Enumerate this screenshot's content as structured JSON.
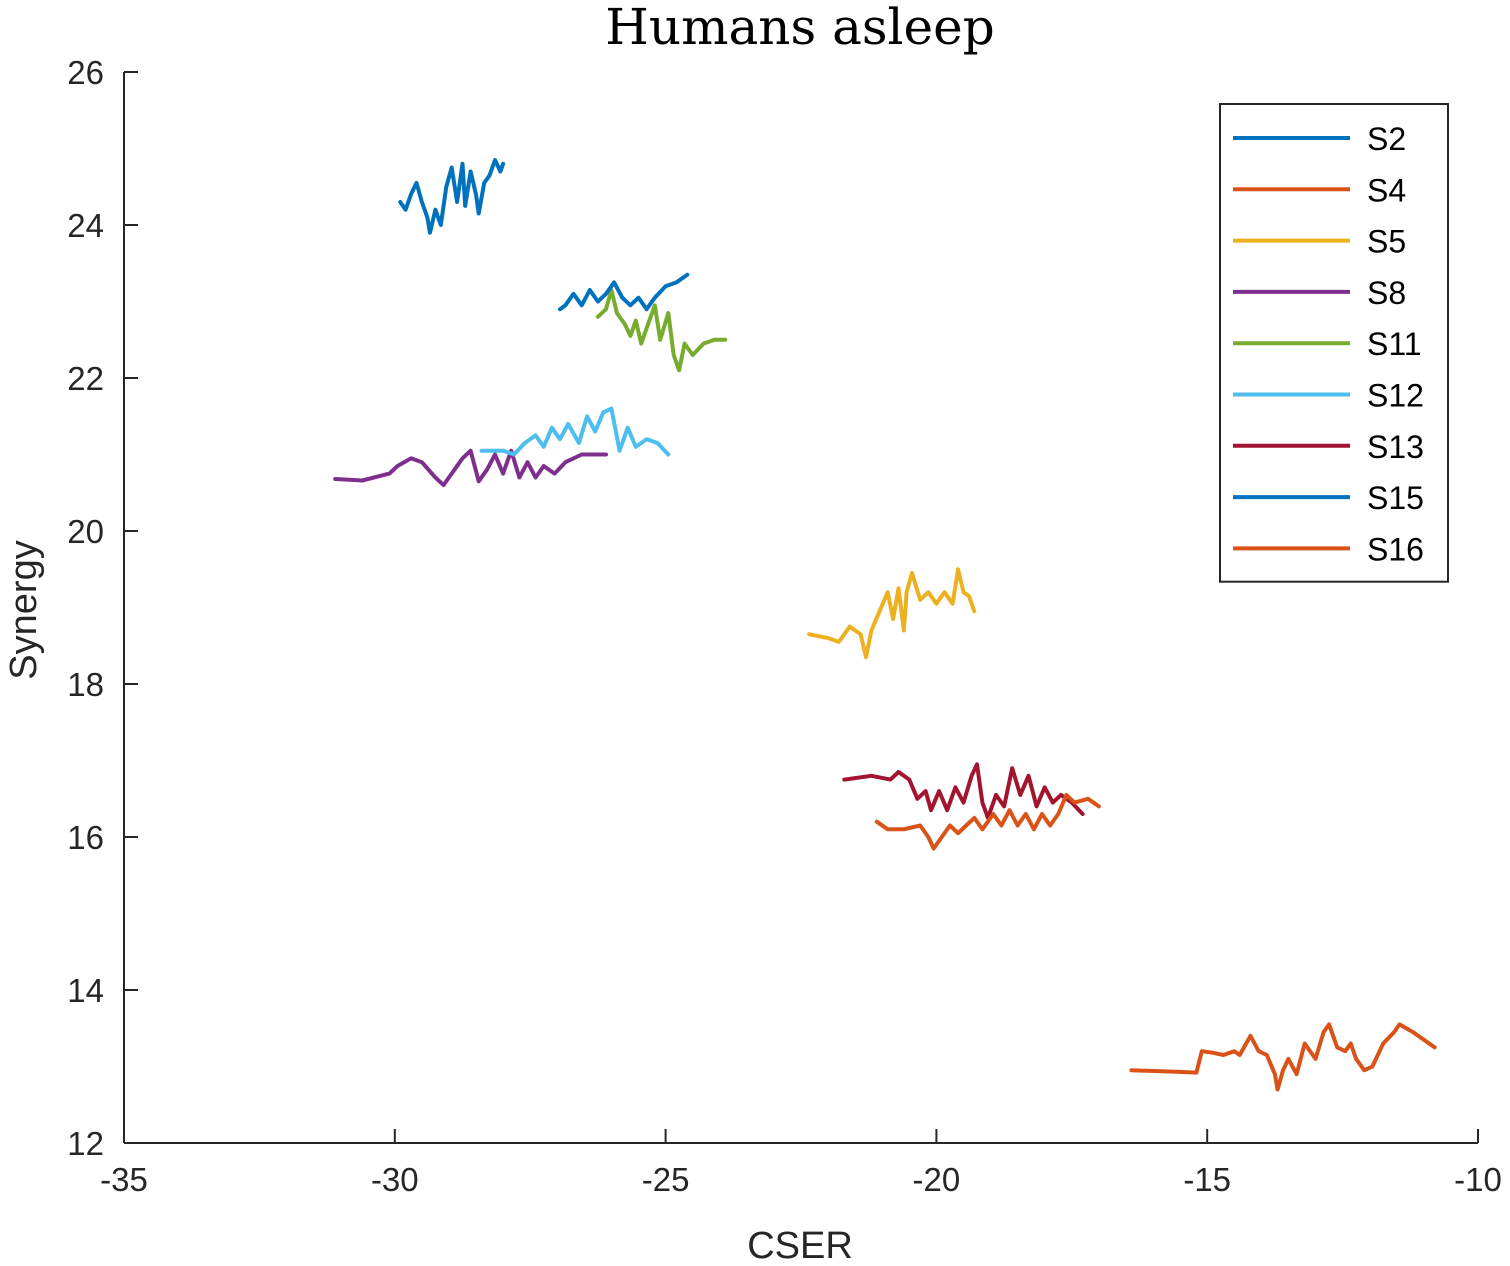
{
  "chart_data": {
    "type": "line",
    "title": "Humans asleep",
    "xlabel": "CSER",
    "ylabel": "Synergy",
    "xlim": [
      -35,
      -10
    ],
    "ylim": [
      12,
      26
    ],
    "xticks": [
      -35,
      -30,
      -25,
      -20,
      -15,
      -10
    ],
    "yticks": [
      12,
      14,
      16,
      18,
      20,
      22,
      24,
      26
    ],
    "grid": false,
    "legend_position": "top-right",
    "series": [
      {
        "name": "S2",
        "color": "#0072BD",
        "points": [
          [
            -29.9,
            24.3
          ],
          [
            -29.8,
            24.2
          ],
          [
            -29.7,
            24.4
          ],
          [
            -29.6,
            24.55
          ],
          [
            -29.5,
            24.3
          ],
          [
            -29.4,
            24.1
          ],
          [
            -29.35,
            23.9
          ],
          [
            -29.25,
            24.2
          ],
          [
            -29.15,
            24.0
          ],
          [
            -29.05,
            24.5
          ],
          [
            -28.95,
            24.75
          ],
          [
            -28.85,
            24.3
          ],
          [
            -28.75,
            24.8
          ],
          [
            -28.7,
            24.25
          ],
          [
            -28.6,
            24.7
          ],
          [
            -28.5,
            24.4
          ],
          [
            -28.45,
            24.15
          ],
          [
            -28.35,
            24.55
          ],
          [
            -28.25,
            24.65
          ],
          [
            -28.15,
            24.85
          ],
          [
            -28.05,
            24.7
          ],
          [
            -28.0,
            24.8
          ]
        ]
      },
      {
        "name": "S4",
        "color": "#D95319",
        "points": [
          [
            -16.4,
            12.95
          ],
          [
            -15.5,
            12.93
          ],
          [
            -15.2,
            12.92
          ],
          [
            -15.1,
            13.2
          ],
          [
            -14.9,
            13.18
          ],
          [
            -14.7,
            13.15
          ],
          [
            -14.5,
            13.2
          ],
          [
            -14.4,
            13.15
          ],
          [
            -14.2,
            13.4
          ],
          [
            -14.05,
            13.2
          ],
          [
            -13.9,
            13.15
          ],
          [
            -13.75,
            12.9
          ],
          [
            -13.7,
            12.7
          ],
          [
            -13.6,
            12.95
          ],
          [
            -13.5,
            13.1
          ],
          [
            -13.35,
            12.9
          ],
          [
            -13.2,
            13.3
          ],
          [
            -13.0,
            13.1
          ],
          [
            -12.85,
            13.45
          ],
          [
            -12.75,
            13.55
          ],
          [
            -12.6,
            13.25
          ],
          [
            -12.45,
            13.2
          ],
          [
            -12.35,
            13.3
          ],
          [
            -12.25,
            13.1
          ],
          [
            -12.1,
            12.95
          ],
          [
            -11.95,
            13.0
          ],
          [
            -11.75,
            13.3
          ],
          [
            -11.55,
            13.45
          ],
          [
            -11.45,
            13.55
          ],
          [
            -11.2,
            13.45
          ],
          [
            -11.0,
            13.35
          ],
          [
            -10.8,
            13.25
          ]
        ]
      },
      {
        "name": "S5",
        "color": "#EDB120",
        "points": [
          [
            -22.35,
            18.65
          ],
          [
            -22.0,
            18.6
          ],
          [
            -21.8,
            18.55
          ],
          [
            -21.6,
            18.75
          ],
          [
            -21.4,
            18.65
          ],
          [
            -21.3,
            18.35
          ],
          [
            -21.2,
            18.7
          ],
          [
            -21.05,
            18.95
          ],
          [
            -20.9,
            19.2
          ],
          [
            -20.8,
            18.85
          ],
          [
            -20.7,
            19.25
          ],
          [
            -20.6,
            18.7
          ],
          [
            -20.55,
            19.2
          ],
          [
            -20.45,
            19.45
          ],
          [
            -20.3,
            19.1
          ],
          [
            -20.15,
            19.2
          ],
          [
            -20.0,
            19.05
          ],
          [
            -19.85,
            19.2
          ],
          [
            -19.7,
            19.05
          ],
          [
            -19.6,
            19.5
          ],
          [
            -19.5,
            19.2
          ],
          [
            -19.4,
            19.15
          ],
          [
            -19.3,
            18.95
          ]
        ]
      },
      {
        "name": "S8",
        "color": "#7E2F8E",
        "points": [
          [
            -31.1,
            20.68
          ],
          [
            -30.6,
            20.66
          ],
          [
            -30.1,
            20.75
          ],
          [
            -29.95,
            20.85
          ],
          [
            -29.7,
            20.95
          ],
          [
            -29.5,
            20.9
          ],
          [
            -29.25,
            20.7
          ],
          [
            -29.1,
            20.6
          ],
          [
            -28.9,
            20.8
          ],
          [
            -28.75,
            20.95
          ],
          [
            -28.6,
            21.05
          ],
          [
            -28.45,
            20.65
          ],
          [
            -28.3,
            20.8
          ],
          [
            -28.15,
            21.0
          ],
          [
            -28.0,
            20.75
          ],
          [
            -27.85,
            21.05
          ],
          [
            -27.7,
            20.7
          ],
          [
            -27.55,
            20.9
          ],
          [
            -27.4,
            20.7
          ],
          [
            -27.25,
            20.85
          ],
          [
            -27.05,
            20.75
          ],
          [
            -26.85,
            20.9
          ],
          [
            -26.55,
            21.0
          ],
          [
            -26.1,
            21.0
          ]
        ]
      },
      {
        "name": "S11",
        "color": "#77AC30",
        "points": [
          [
            -26.25,
            22.8
          ],
          [
            -26.1,
            22.9
          ],
          [
            -26.0,
            23.15
          ],
          [
            -25.9,
            22.85
          ],
          [
            -25.75,
            22.7
          ],
          [
            -25.65,
            22.55
          ],
          [
            -25.55,
            22.75
          ],
          [
            -25.45,
            22.45
          ],
          [
            -25.35,
            22.65
          ],
          [
            -25.2,
            22.95
          ],
          [
            -25.1,
            22.5
          ],
          [
            -24.95,
            22.85
          ],
          [
            -24.85,
            22.3
          ],
          [
            -24.75,
            22.1
          ],
          [
            -24.65,
            22.45
          ],
          [
            -24.5,
            22.3
          ],
          [
            -24.3,
            22.45
          ],
          [
            -24.1,
            22.5
          ],
          [
            -23.9,
            22.5
          ]
        ]
      },
      {
        "name": "S12",
        "color": "#4DBEEE",
        "points": [
          [
            -28.4,
            21.05
          ],
          [
            -28.0,
            21.05
          ],
          [
            -27.8,
            21.0
          ],
          [
            -27.6,
            21.15
          ],
          [
            -27.4,
            21.25
          ],
          [
            -27.25,
            21.1
          ],
          [
            -27.1,
            21.35
          ],
          [
            -26.95,
            21.2
          ],
          [
            -26.8,
            21.4
          ],
          [
            -26.6,
            21.15
          ],
          [
            -26.45,
            21.5
          ],
          [
            -26.3,
            21.3
          ],
          [
            -26.15,
            21.55
          ],
          [
            -26.0,
            21.6
          ],
          [
            -25.85,
            21.05
          ],
          [
            -25.7,
            21.35
          ],
          [
            -25.55,
            21.1
          ],
          [
            -25.35,
            21.2
          ],
          [
            -25.15,
            21.15
          ],
          [
            -24.95,
            21.0
          ]
        ]
      },
      {
        "name": "S13",
        "color": "#A2142F",
        "points": [
          [
            -21.7,
            16.75
          ],
          [
            -21.2,
            16.8
          ],
          [
            -20.85,
            16.75
          ],
          [
            -20.7,
            16.85
          ],
          [
            -20.5,
            16.75
          ],
          [
            -20.35,
            16.5
          ],
          [
            -20.2,
            16.6
          ],
          [
            -20.1,
            16.35
          ],
          [
            -19.95,
            16.6
          ],
          [
            -19.8,
            16.35
          ],
          [
            -19.65,
            16.65
          ],
          [
            -19.5,
            16.45
          ],
          [
            -19.35,
            16.8
          ],
          [
            -19.25,
            16.95
          ],
          [
            -19.15,
            16.45
          ],
          [
            -19.05,
            16.25
          ],
          [
            -18.9,
            16.55
          ],
          [
            -18.75,
            16.4
          ],
          [
            -18.6,
            16.9
          ],
          [
            -18.45,
            16.55
          ],
          [
            -18.3,
            16.8
          ],
          [
            -18.15,
            16.4
          ],
          [
            -18.0,
            16.65
          ],
          [
            -17.85,
            16.45
          ],
          [
            -17.7,
            16.55
          ],
          [
            -17.5,
            16.45
          ],
          [
            -17.3,
            16.3
          ]
        ]
      },
      {
        "name": "S15",
        "color": "#0072BD",
        "points": [
          [
            -26.95,
            22.9
          ],
          [
            -26.85,
            22.95
          ],
          [
            -26.7,
            23.1
          ],
          [
            -26.55,
            22.95
          ],
          [
            -26.4,
            23.15
          ],
          [
            -26.25,
            23.0
          ],
          [
            -26.1,
            23.1
          ],
          [
            -25.95,
            23.25
          ],
          [
            -25.8,
            23.05
          ],
          [
            -25.65,
            22.95
          ],
          [
            -25.5,
            23.05
          ],
          [
            -25.35,
            22.9
          ],
          [
            -25.2,
            23.05
          ],
          [
            -25.0,
            23.2
          ],
          [
            -24.8,
            23.25
          ],
          [
            -24.6,
            23.35
          ]
        ]
      },
      {
        "name": "S16",
        "color": "#D95319",
        "points": [
          [
            -21.1,
            16.2
          ],
          [
            -20.9,
            16.1
          ],
          [
            -20.6,
            16.1
          ],
          [
            -20.3,
            16.15
          ],
          [
            -20.15,
            16.0
          ],
          [
            -20.05,
            15.85
          ],
          [
            -19.9,
            16.0
          ],
          [
            -19.75,
            16.15
          ],
          [
            -19.6,
            16.05
          ],
          [
            -19.45,
            16.15
          ],
          [
            -19.3,
            16.25
          ],
          [
            -19.15,
            16.1
          ],
          [
            -18.95,
            16.3
          ],
          [
            -18.8,
            16.15
          ],
          [
            -18.65,
            16.35
          ],
          [
            -18.5,
            16.15
          ],
          [
            -18.35,
            16.3
          ],
          [
            -18.2,
            16.1
          ],
          [
            -18.05,
            16.3
          ],
          [
            -17.9,
            16.15
          ],
          [
            -17.75,
            16.3
          ],
          [
            -17.6,
            16.55
          ],
          [
            -17.45,
            16.45
          ],
          [
            -17.2,
            16.5
          ],
          [
            -17.0,
            16.4
          ]
        ]
      }
    ]
  }
}
